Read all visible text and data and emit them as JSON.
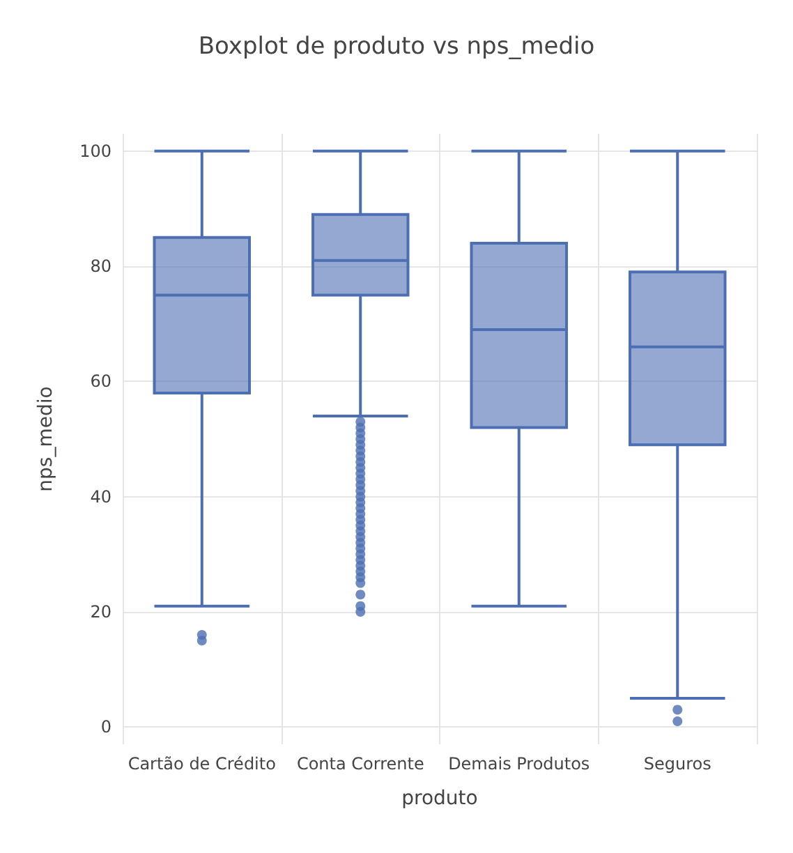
{
  "chart_data": {
    "type": "box",
    "title": "Boxplot de produto vs nps_medio",
    "xlabel": "produto",
    "ylabel": "nps_medio",
    "categories": [
      "Cartão de Crédito",
      "Conta Corrente",
      "Demais Produtos",
      "Seguros"
    ],
    "series": [
      {
        "color": "#4c6eb3",
        "boxes": [
          {
            "low": 21,
            "q1": 58,
            "median": 75,
            "q3": 85,
            "high": 100,
            "outliers": [
              15,
              16
            ]
          },
          {
            "low": 54,
            "q1": 75,
            "median": 81,
            "q3": 89,
            "high": 100,
            "outliers": [
              53,
              52,
              51,
              50,
              49,
              48,
              47,
              46,
              45,
              44,
              43,
              42,
              41,
              40,
              39,
              38,
              37,
              36,
              35,
              34,
              33,
              32,
              31,
              30,
              29,
              28,
              27,
              26,
              25,
              23,
              21,
              20
            ]
          },
          {
            "low": 21,
            "q1": 52,
            "median": 69,
            "q3": 84,
            "high": 100
          },
          {
            "low": 5,
            "q1": 49,
            "median": 66,
            "q3": 79,
            "high": 100,
            "outliers": [
              3,
              1
            ]
          }
        ]
      }
    ],
    "ylim": [
      -3,
      103
    ],
    "yticks": [
      0,
      20,
      40,
      60,
      80,
      100
    ],
    "grid": true,
    "marker": "circle"
  }
}
